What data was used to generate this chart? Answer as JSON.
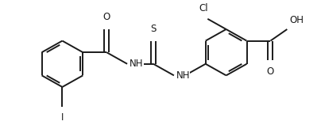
{
  "bg_color": "#ffffff",
  "line_color": "#1a1a1a",
  "line_width": 1.4,
  "font_size": 8.5,
  "dpi": 100,
  "figsize": [
    4.04,
    1.58
  ],
  "xlim": [
    0,
    404
  ],
  "ylim": [
    0,
    158
  ]
}
